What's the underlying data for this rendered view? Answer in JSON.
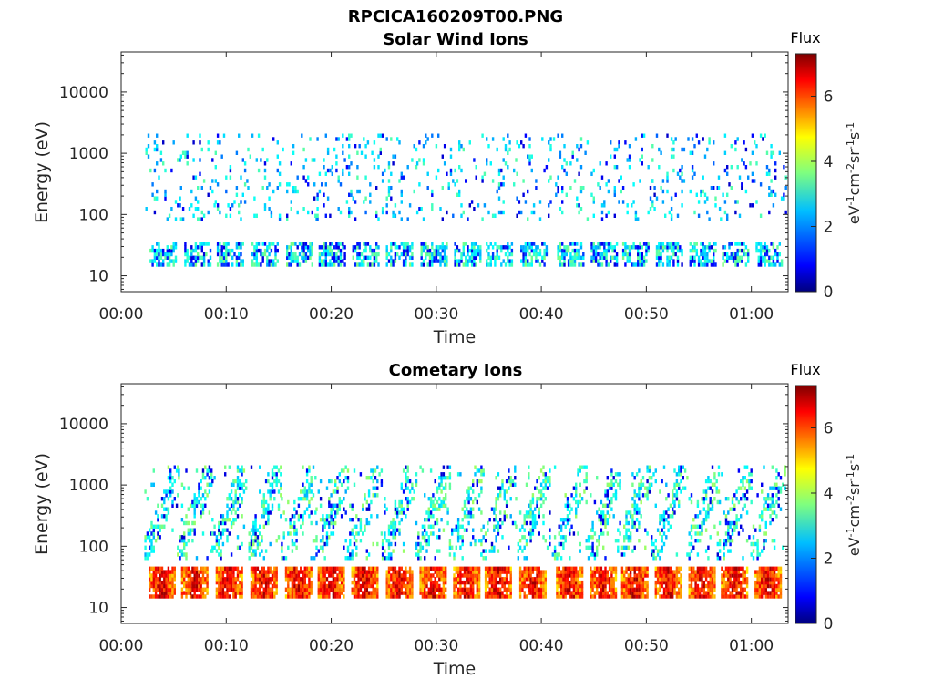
{
  "figure": {
    "title": "RPCICA160209T00.PNG"
  },
  "chart_data": [
    {
      "type": "heatmap",
      "title": "Solar Wind Ions",
      "xlabel": "Time",
      "ylabel": "Energy (eV)",
      "x_unit": "minutes",
      "xlim": [
        0,
        63.5
      ],
      "ylim": [
        5.5,
        45000
      ],
      "yscale": "log",
      "xticks": [
        0,
        10,
        20,
        30,
        40,
        50,
        60
      ],
      "xtick_labels": [
        "00:00",
        "00:10",
        "00:20",
        "00:30",
        "00:40",
        "00:50",
        "01:00"
      ],
      "yticks": [
        10,
        100,
        1000,
        10000
      ],
      "ytick_labels": [
        "10",
        "100",
        "1000",
        "10000"
      ],
      "colorbar": {
        "title": "Flux",
        "label": "eV-1cm-2sr-1s-1",
        "range": [
          0,
          7.3
        ],
        "ticks": [
          0,
          2,
          4,
          6
        ],
        "tick_labels": [
          "0",
          "2",
          "4",
          "6"
        ],
        "colormap": "jet"
      },
      "bursts": {
        "centers_min": [
          3.9,
          7.2,
          10.3,
          13.6,
          16.9,
          20.0,
          23.2,
          26.4,
          29.7,
          32.9,
          35.9,
          39.2,
          42.7,
          45.9,
          48.9,
          52.1,
          55.3,
          58.4,
          61.6
        ],
        "band_energy_ev": [
          18,
          33
        ],
        "band_flux": 2.8,
        "scatter_energy_ev": [
          80,
          2000
        ],
        "scatter_flux": 2.5
      },
      "grid": false,
      "legend": "none"
    },
    {
      "type": "heatmap",
      "title": "Cometary Ions",
      "xlabel": "Time",
      "ylabel": "Energy (eV)",
      "x_unit": "minutes",
      "xlim": [
        0,
        63.5
      ],
      "ylim": [
        5.5,
        45000
      ],
      "yscale": "log",
      "xticks": [
        0,
        10,
        20,
        30,
        40,
        50,
        60
      ],
      "xtick_labels": [
        "00:00",
        "00:10",
        "00:20",
        "00:30",
        "00:40",
        "00:50",
        "01:00"
      ],
      "yticks": [
        10,
        100,
        1000,
        10000
      ],
      "ytick_labels": [
        "10",
        "100",
        "1000",
        "10000"
      ],
      "colorbar": {
        "title": "Flux",
        "label": "eV-1cm-2sr-1s-1",
        "range": [
          0,
          7.3
        ],
        "ticks": [
          0,
          2,
          4,
          6
        ],
        "tick_labels": [
          "0",
          "2",
          "4",
          "6"
        ],
        "colormap": "jet"
      },
      "bursts": {
        "centers_min": [
          3.8,
          6.9,
          10.2,
          13.5,
          16.8,
          19.9,
          23.1,
          26.4,
          29.6,
          32.8,
          35.8,
          39.1,
          42.6,
          45.8,
          48.8,
          52.0,
          55.2,
          58.3,
          61.5
        ],
        "band_energy_ev": [
          18,
          40
        ],
        "band_flux": 5.3,
        "scatter_energy_ev": [
          60,
          2000
        ],
        "scatter_flux": 3.0
      },
      "grid": false,
      "legend": "none"
    }
  ]
}
